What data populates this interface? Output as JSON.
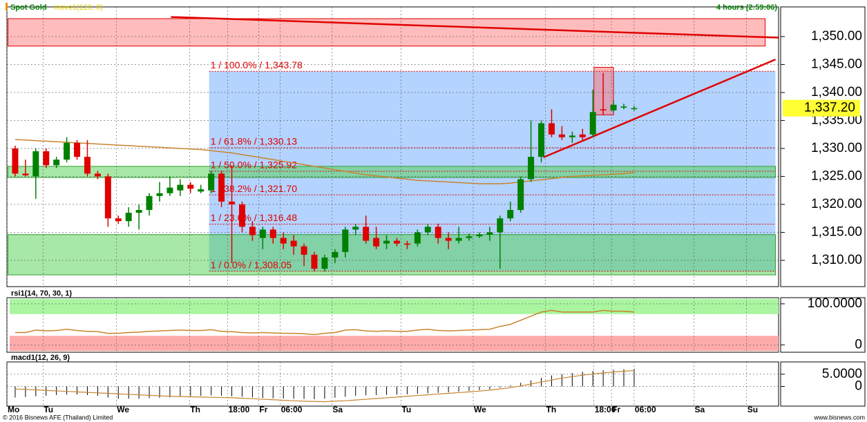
{
  "chart_data": [
    {
      "type": "candlestick",
      "title": "Spot Gold",
      "subtitle": "move1(120, 0)",
      "annotation": "4 hours (2:59:06)",
      "up_color": "#008000",
      "down_color": "#e00000",
      "open": [
        1330,
        1325.5,
        1325,
        1329.5,
        1327,
        1328,
        1331,
        1328.5,
        1325.5,
        1325,
        1317.5,
        1317,
        1318.5,
        1319,
        1321.5,
        1322,
        1322.5,
        1323.5,
        1322.3,
        1322.5,
        1325.5,
        1320.5,
        1320,
        1316,
        1314,
        1315.5,
        1314,
        1313.5,
        1312.5,
        1311,
        1308.5,
        1310.5,
        1311.5,
        1315.5,
        1316,
        1314,
        1313,
        1313.5,
        1313,
        1313,
        1315,
        1316,
        1314,
        1313.5,
        1314,
        1314.3,
        1314.6,
        1315,
        1317.5,
        1319,
        1324.5,
        1328.5,
        1334.5,
        1332.5,
        1332,
        1332.5,
        1332.5,
        1337,
        1336.8,
        1337.3,
        1337.2
      ],
      "high": [
        1330.5,
        1328,
        1330,
        1330,
        1328.5,
        1332,
        1331.5,
        1331.5,
        1326,
        1325.5,
        1318,
        1319.5,
        1320,
        1322,
        1324,
        1325,
        1324.5,
        1324,
        1323.5,
        1326,
        1326,
        1327,
        1320.5,
        1317,
        1316,
        1316,
        1315,
        1314.5,
        1313,
        1311.5,
        1311,
        1312,
        1316,
        1316.5,
        1318,
        1316,
        1314.5,
        1314,
        1313.5,
        1315.5,
        1316.5,
        1316.5,
        1315,
        1316,
        1314.8,
        1315,
        1316,
        1318,
        1320.5,
        1325,
        1335,
        1335,
        1337,
        1334,
        1333,
        1333.5,
        1340.5,
        1343.5,
        1338.5,
        1338,
        1337.6
      ],
      "low": [
        1325,
        1325,
        1321,
        1326.5,
        1326.5,
        1327.5,
        1328,
        1325,
        1324.5,
        1316,
        1316.5,
        1316,
        1315.5,
        1318,
        1320.5,
        1321.5,
        1321.5,
        1322,
        1322,
        1322,
        1319.5,
        1309.5,
        1315,
        1313.5,
        1312,
        1313,
        1312,
        1311,
        1309,
        1308,
        1308,
        1309.5,
        1310.5,
        1314.5,
        1313,
        1312,
        1312,
        1312.5,
        1312,
        1312.5,
        1314.5,
        1313,
        1312,
        1313,
        1313.5,
        1314,
        1313.5,
        1308.5,
        1317,
        1318.5,
        1324,
        1327.5,
        1332,
        1331.5,
        1331,
        1331.5,
        1332,
        1336,
        1336.5,
        1337,
        1336.8
      ],
      "close": [
        1325.5,
        1325.2,
        1329.5,
        1327,
        1328,
        1331,
        1328.5,
        1325.5,
        1325,
        1317.5,
        1317,
        1318.5,
        1319,
        1321.5,
        1322,
        1323,
        1323.5,
        1322.8,
        1322.7,
        1325.5,
        1320.5,
        1320,
        1316,
        1314.5,
        1315.5,
        1314,
        1313,
        1312.5,
        1311,
        1308.5,
        1310.5,
        1311.5,
        1315.5,
        1316,
        1313.5,
        1312.5,
        1313.5,
        1313,
        1312.8,
        1315,
        1316,
        1314,
        1313.5,
        1314,
        1314.3,
        1314.6,
        1315,
        1317.5,
        1319,
        1324.5,
        1328.5,
        1334.5,
        1332.5,
        1332,
        1332.3,
        1332,
        1336.5,
        1336.8,
        1337.8,
        1337.5,
        1337.2
      ],
      "ma": {
        "color": "#c8842c",
        "values": [
          1331.6,
          1331.5,
          1331.4,
          1331.3,
          1331.2,
          1331.1,
          1331,
          1330.9,
          1330.8,
          1330.7,
          1330.6,
          1330.5,
          1330.4,
          1330.3,
          1330.2,
          1330.1,
          1330,
          1329.9,
          1329.8,
          1329.6,
          1329.4,
          1329.2,
          1328.9,
          1328.6,
          1328.3,
          1328,
          1327.7,
          1327.4,
          1327.1,
          1326.8,
          1326.5,
          1326.2,
          1325.9,
          1325.6,
          1325.3,
          1325.1,
          1324.9,
          1324.7,
          1324.5,
          1324.3,
          1324.2,
          1324.1,
          1324,
          1323.9,
          1323.8,
          1323.7,
          1323.7,
          1323.7,
          1323.8,
          1324,
          1324.2,
          1324.4,
          1324.6,
          1324.8,
          1325,
          1325.1,
          1325.2,
          1325.3,
          1325.4,
          1325.5,
          1325.7
        ]
      },
      "zones": [
        {
          "color": "#ff7a7a",
          "stroke": "#e00000",
          "range": [
            1348.3,
            1353.2
          ],
          "x_range": [
            -0.7,
            72.7
          ]
        },
        {
          "color": "#6aa8ff",
          "stroke": "none",
          "range": [
            1308.05,
            1343.78
          ],
          "x_range": [
            18.8,
            73.7
          ]
        },
        {
          "color": "#4fd04f",
          "stroke": "#2f9f2f",
          "range": [
            1324.8,
            1326.8
          ],
          "x_range": [
            -0.7,
            73.7
          ]
        },
        {
          "color": "#4fd04f",
          "stroke": "#2f9f2f",
          "range": [
            1307.4,
            1314.6
          ],
          "x_range": [
            -0.7,
            73.7
          ]
        },
        {
          "color": "#ff6f6f",
          "stroke": "#e00000",
          "range": [
            1336,
            1344.5
          ],
          "x_range": [
            56.1,
            58
          ]
        }
      ],
      "fib_color": "#e00000",
      "fib_levels": [
        {
          "value": 1343.78,
          "label": "1 / 100.0% / 1,343.78"
        },
        {
          "value": 1330.13,
          "label": "1 / 61.8% / 1,330.13"
        },
        {
          "value": 1325.92,
          "label": "1 / 50.0% / 1,325.92"
        },
        {
          "value": 1321.7,
          "label": "1 / 38.2% / 1,321.70"
        },
        {
          "value": 1316.48,
          "label": "1 / 23.6% / 1,316.48"
        },
        {
          "value": 1308.05,
          "label": "1 / 0.0% / 1,308.05"
        }
      ],
      "trendlines": [
        {
          "color": "#e00000",
          "x": [
            15.1,
            74.0
          ],
          "y": [
            1353.5,
            1349.8
          ]
        },
        {
          "color": "#e00000",
          "x": [
            51.2,
            73.7
          ],
          "y": [
            1328.4,
            1345.9
          ]
        }
      ],
      "current": {
        "value": 1337.2,
        "label": "1,337.20",
        "color": "#ffff33"
      },
      "xlim": [
        -0.8,
        74.0
      ],
      "xticks": [
        {
          "value": -0.8,
          "label": "Mo"
        },
        {
          "value": 2.7,
          "label": "Tu"
        },
        {
          "value": 9.8,
          "label": "We"
        },
        {
          "value": 16.9,
          "label": "Th"
        },
        {
          "value": 20.6,
          "label": "18:00"
        },
        {
          "value": 23.6,
          "label": "Fr"
        },
        {
          "value": 25.7,
          "label": "06:00"
        },
        {
          "value": 30.7,
          "label": "Sa"
        },
        {
          "value": 37.4,
          "label": "Tu"
        },
        {
          "value": 44.4,
          "label": "We"
        },
        {
          "value": 51.4,
          "label": "Th"
        },
        {
          "value": 56.1,
          "label": "18:00"
        },
        {
          "value": 57.8,
          "label": "Fr"
        },
        {
          "value": 60,
          "label": "06:00"
        },
        {
          "value": 65.8,
          "label": "Sa"
        },
        {
          "value": 70.9,
          "label": "Su"
        }
      ],
      "ylim": [
        1305.3,
        1355.3
      ],
      "yticks": [
        {
          "value": 1350,
          "label": "1,350.00"
        },
        {
          "value": 1345,
          "label": "1,345.00"
        },
        {
          "value": 1340,
          "label": "1,340.00"
        },
        {
          "value": 1335,
          "label": "1,335.00"
        },
        {
          "value": 1330,
          "label": "1,330.00"
        },
        {
          "value": 1325,
          "label": "1,325.00"
        },
        {
          "value": 1320,
          "label": "1,320.00"
        },
        {
          "value": 1315,
          "label": "1,315.00"
        },
        {
          "value": 1310,
          "label": "1,310.00"
        }
      ],
      "grid": true
    },
    {
      "type": "line",
      "title": "rsi1(14, 70, 30, 1)",
      "bands": [
        {
          "color": "#aaf5a0",
          "range": [
            75,
            112
          ]
        },
        {
          "color": "#ffaaaa",
          "range": [
            -15,
            22
          ]
        }
      ],
      "series": [
        {
          "color": "#c8842c",
          "values": [
            30,
            30,
            36,
            34,
            35,
            38,
            35,
            33,
            32,
            28,
            28,
            30,
            31,
            33,
            34,
            35,
            36,
            35,
            35,
            37,
            33,
            32,
            30,
            29,
            30,
            29,
            28,
            28,
            27,
            25,
            28,
            30,
            36,
            37,
            34,
            33,
            34,
            33,
            33,
            36,
            38,
            35,
            34,
            35,
            36,
            37,
            38,
            45,
            50,
            60,
            70,
            80,
            84,
            80,
            80,
            80,
            80,
            84,
            82,
            82,
            80
          ]
        }
      ],
      "ylim": [
        -18,
        115
      ],
      "yticks": [
        {
          "value": 100,
          "label": "100.0000"
        },
        0
      ],
      "grid": true
    },
    {
      "type": "bar",
      "title": "macd1(12, 26, 9)",
      "color": "#000000",
      "values": [
        -4.5,
        -4.3,
        -4,
        -3.8,
        -3.5,
        -3.3,
        -3.3,
        -3.5,
        -3.8,
        -4.5,
        -5,
        -5,
        -5,
        -4.8,
        -4.6,
        -4.4,
        -4.2,
        -4,
        -3.8,
        -3.6,
        -3.8,
        -4,
        -4.2,
        -4.5,
        -4.7,
        -4.8,
        -4.9,
        -5,
        -5.1,
        -5.2,
        -5,
        -4.6,
        -4.2,
        -3.8,
        -3.6,
        -3.5,
        -3.4,
        -3.3,
        -3.2,
        -3,
        -2.8,
        -2.6,
        -2.4,
        -2.1,
        -1.8,
        -1.5,
        -1.2,
        -0.5,
        0.5,
        1.5,
        2.5,
        3.5,
        4.5,
        5,
        5.5,
        6,
        6.3,
        6.6,
        6.8,
        7,
        7.2
      ],
      "series": [
        {
          "color": "#c8842c",
          "values": [
            -1,
            -1.2,
            -1.4,
            -1.6,
            -1.8,
            -2,
            -2.2,
            -2.4,
            -2.6,
            -2.8,
            -3,
            -3.2,
            -3.4,
            -3.6,
            -3.8,
            -4,
            -4.1,
            -4.2,
            -4.3,
            -4.4,
            -4.5,
            -4.6,
            -4.8,
            -5,
            -5.2,
            -5.4,
            -5.6,
            -5.8,
            -6,
            -6.1,
            -6.2,
            -6,
            -5.8,
            -5.5,
            -5.2,
            -4.9,
            -4.6,
            -4.3,
            -4,
            -3.7,
            -3.4,
            -3.1,
            -2.8,
            -2.5,
            -2.2,
            -1.9,
            -1.5,
            -1,
            -0.5,
            0.2,
            1,
            1.8,
            2.6,
            3.4,
            4,
            4.6,
            5.1,
            5.5,
            5.9,
            6.2,
            6.5
          ]
        }
      ],
      "ylim": [
        -8,
        10
      ],
      "yticks": [
        {
          "value": 5,
          "label": "5.0000"
        },
        0
      ],
      "grid": true
    }
  ],
  "footer": {
    "left": "© 2016 Bisnews AFE (Thailand) Limited",
    "right": "www.bisnews.com"
  }
}
